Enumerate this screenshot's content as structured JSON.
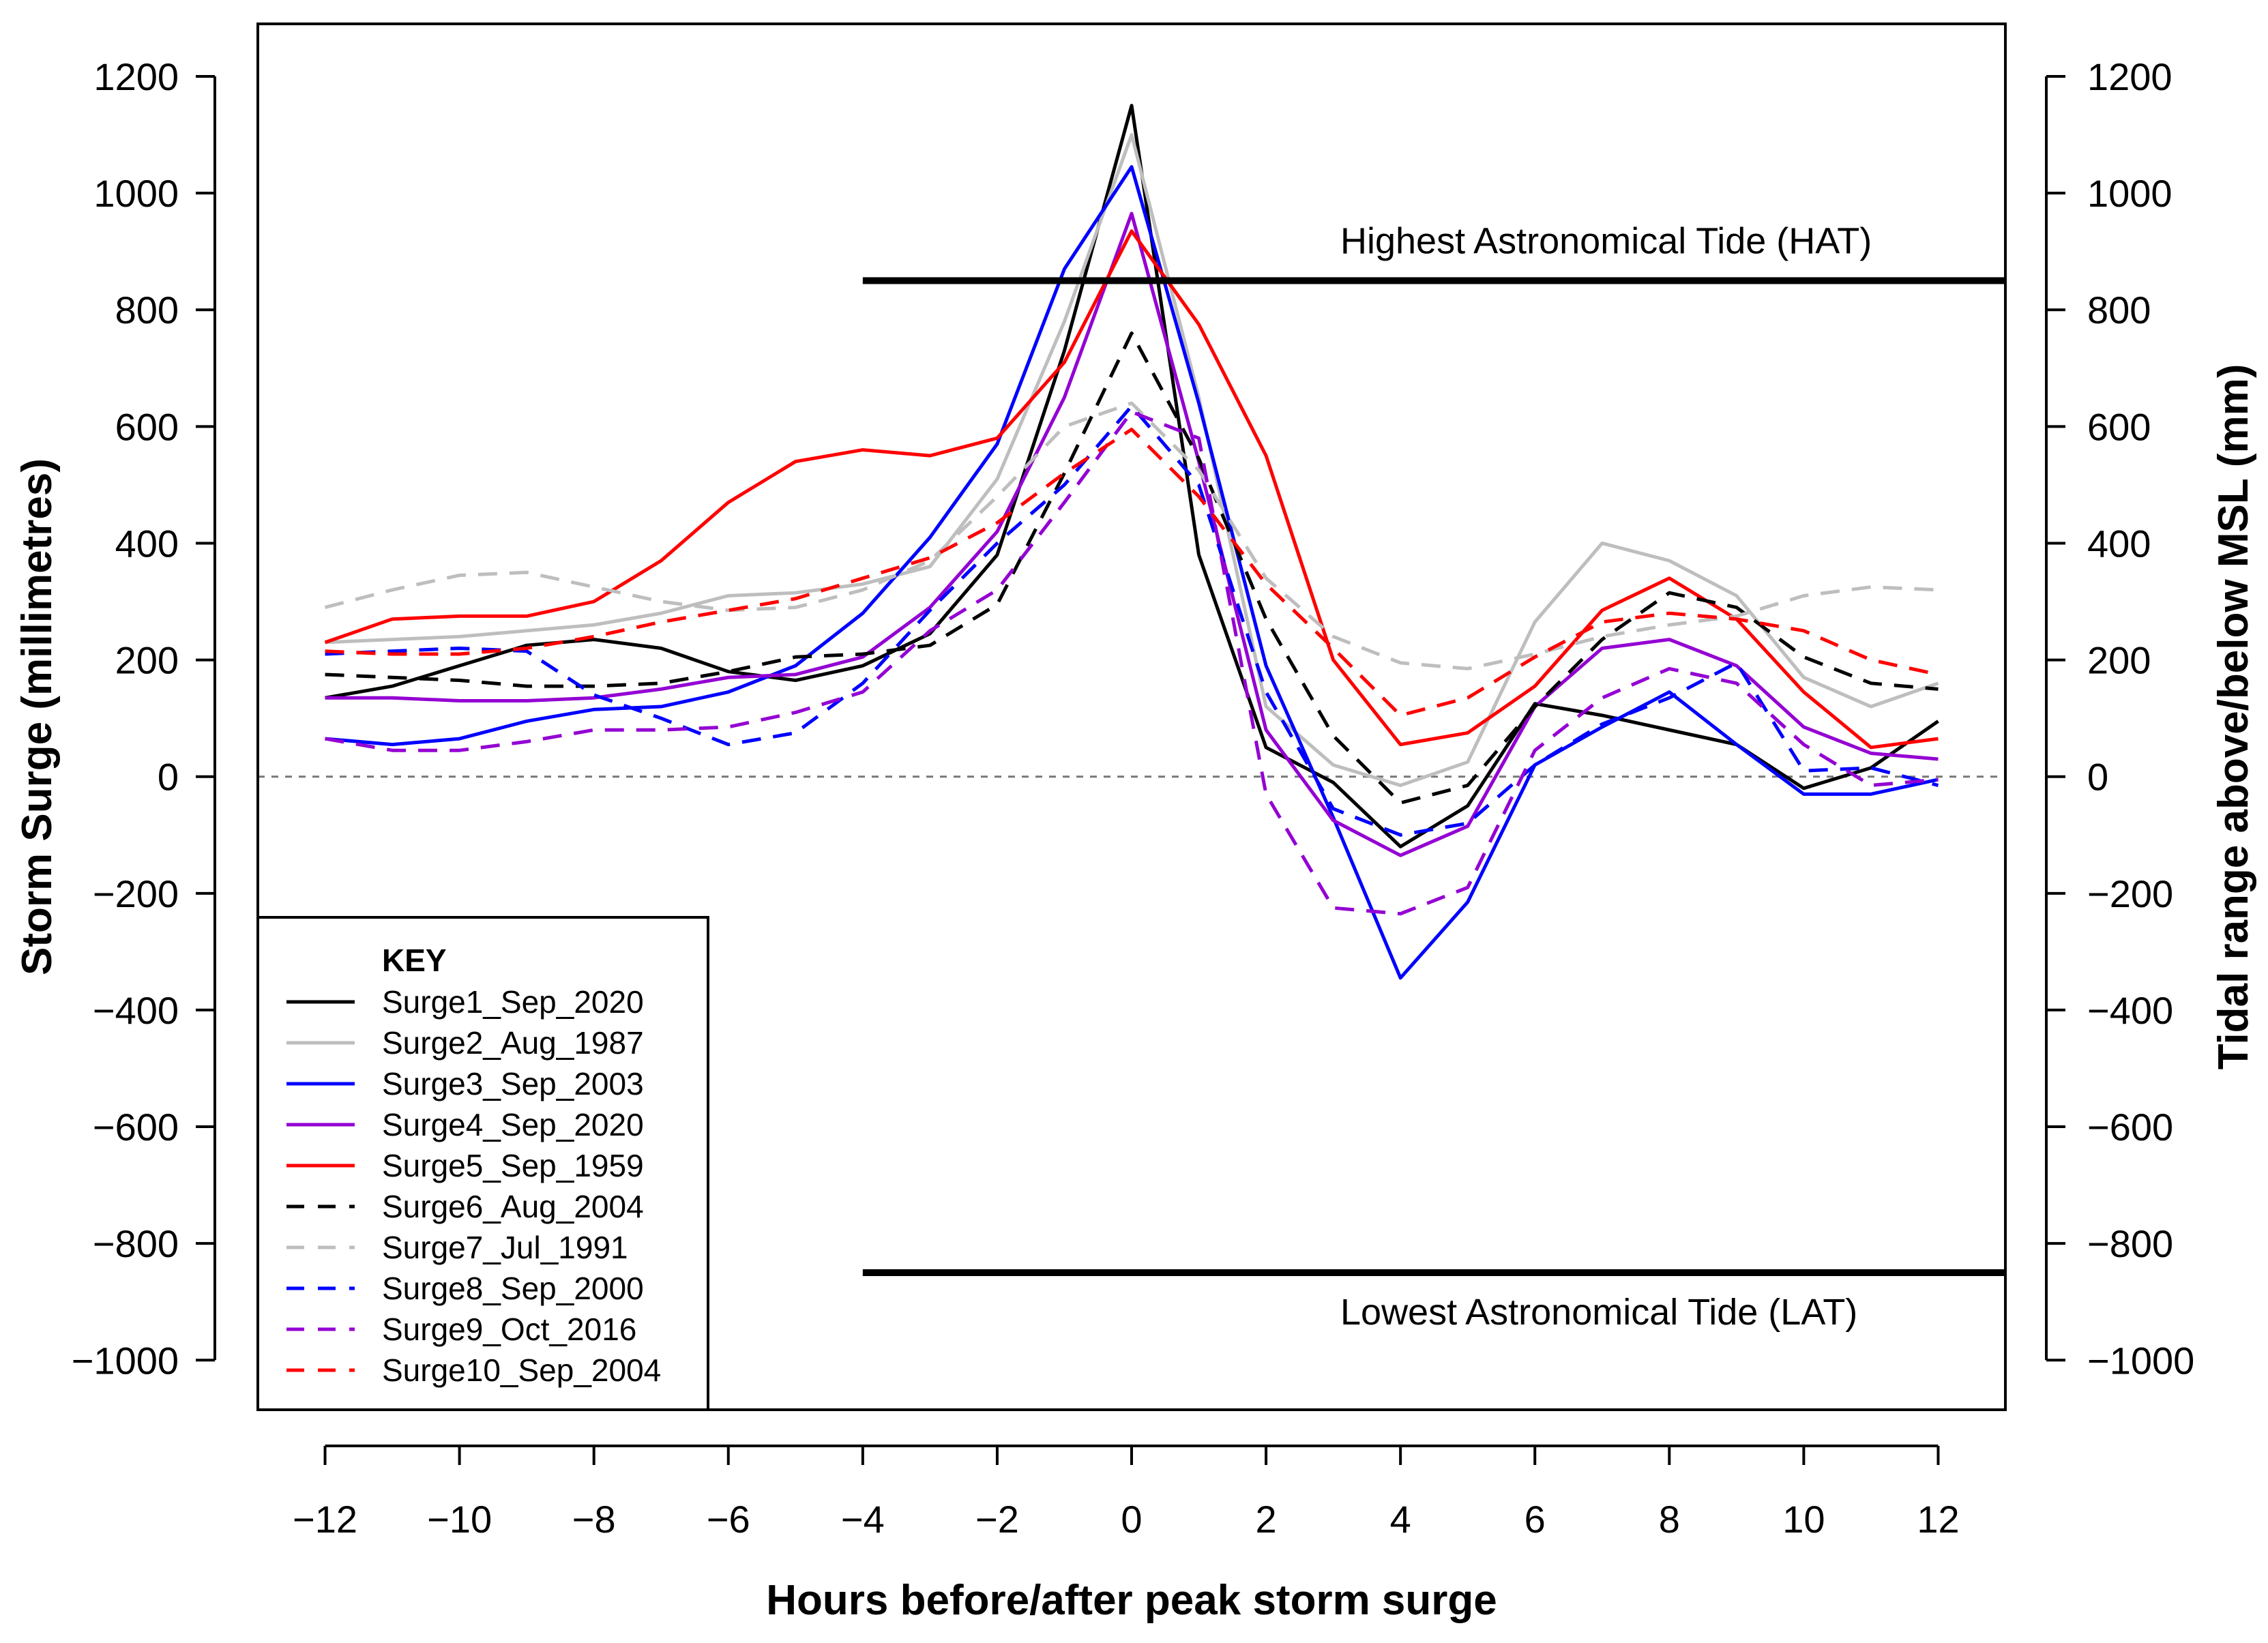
{
  "chart_data": {
    "type": "line",
    "xlabel": "Hours before/after peak storm surge",
    "ylabel": "Storm Surge (millimetres)",
    "y2label": "Tidal range above/below MSL (mm)",
    "xlim": [
      -13,
      13
    ],
    "ylim": [
      -1085,
      1290
    ],
    "x_ticks": [
      -12,
      -10,
      -8,
      -6,
      -4,
      -2,
      0,
      2,
      4,
      6,
      8,
      10,
      12
    ],
    "x_tick_labels": [
      "−12",
      "−10",
      "−8",
      "−6",
      "−4",
      "−2",
      "0",
      "2",
      "4",
      "6",
      "8",
      "10",
      "12"
    ],
    "y_ticks": [
      1200,
      1000,
      800,
      600,
      400,
      200,
      0,
      -200,
      -400,
      -600,
      -800,
      -1000
    ],
    "y_tick_labels": [
      "1200",
      "1000",
      "800",
      "600",
      "400",
      "200",
      "0",
      "−200",
      "−400",
      "−600",
      "−800",
      "−1000"
    ],
    "grid": false,
    "zero_line": true,
    "reference_lines": [
      {
        "label": "Highest Astronomical Tide (HAT)",
        "y": 850,
        "x_start": -4
      },
      {
        "label": "Lowest Astronomical Tide (LAT)",
        "y": -850,
        "x_start": -4
      }
    ],
    "legend": {
      "title": "KEY",
      "position": "bottom-left"
    },
    "x": [
      -12,
      -11,
      -10,
      -9,
      -8,
      -7,
      -6,
      -5,
      -4,
      -3,
      -2,
      -1,
      0,
      1,
      2,
      3,
      4,
      5,
      6,
      7,
      8,
      9,
      10,
      11,
      12
    ],
    "series": [
      {
        "name": "Surge1_Sep_2020",
        "color": "#000000",
        "dash": "solid",
        "values": [
          135,
          155,
          190,
          225,
          235,
          220,
          180,
          165,
          190,
          245,
          380,
          730,
          1150,
          380,
          50,
          -10,
          -120,
          -50,
          125,
          105,
          80,
          55,
          -20,
          15,
          95
        ]
      },
      {
        "name": "Surge2_Aug_1987",
        "color": "#bebebe",
        "dash": "solid",
        "values": [
          230,
          235,
          240,
          250,
          260,
          280,
          310,
          315,
          330,
          360,
          510,
          780,
          1100,
          650,
          120,
          20,
          -15,
          25,
          265,
          400,
          370,
          310,
          170,
          120,
          160
        ]
      },
      {
        "name": "Surge3_Sep_2003",
        "color": "#0000ff",
        "dash": "solid",
        "values": [
          65,
          55,
          65,
          95,
          115,
          120,
          145,
          190,
          280,
          410,
          570,
          870,
          1045,
          640,
          190,
          -70,
          -345,
          -215,
          20,
          85,
          145,
          55,
          -30,
          -30,
          -5
        ]
      },
      {
        "name": "Surge4_Sep_2020",
        "color": "#9400d3",
        "dash": "solid",
        "values": [
          135,
          135,
          130,
          130,
          135,
          150,
          170,
          175,
          205,
          290,
          420,
          650,
          965,
          540,
          80,
          -75,
          -135,
          -85,
          120,
          220,
          235,
          190,
          85,
          40,
          30
        ]
      },
      {
        "name": "Surge5_Sep_1959",
        "color": "#ff0000",
        "dash": "solid",
        "values": [
          230,
          270,
          275,
          275,
          300,
          370,
          470,
          540,
          560,
          550,
          580,
          710,
          935,
          775,
          550,
          200,
          55,
          75,
          155,
          285,
          340,
          270,
          145,
          50,
          65
        ]
      },
      {
        "name": "Surge6_Aug_2004",
        "color": "#000000",
        "dash": "dashed",
        "values": [
          175,
          170,
          165,
          155,
          155,
          160,
          180,
          205,
          210,
          225,
          295,
          520,
          760,
          545,
          270,
          70,
          -45,
          -15,
          120,
          235,
          315,
          290,
          205,
          160,
          150
        ]
      },
      {
        "name": "Surge7_Jul_1991",
        "color": "#bebebe",
        "dash": "dashed",
        "values": [
          290,
          320,
          345,
          350,
          325,
          300,
          285,
          290,
          320,
          370,
          480,
          600,
          640,
          525,
          340,
          240,
          195,
          185,
          210,
          240,
          260,
          275,
          310,
          325,
          320
        ]
      },
      {
        "name": "Surge8_Sep_2000",
        "color": "#0000ff",
        "dash": "dashed",
        "values": [
          210,
          215,
          220,
          215,
          140,
          100,
          55,
          75,
          160,
          285,
          400,
          500,
          635,
          500,
          145,
          -55,
          -100,
          -80,
          20,
          90,
          135,
          195,
          10,
          15,
          -15
        ]
      },
      {
        "name": "Surge9_Oct_2016",
        "color": "#9400d3",
        "dash": "dashed",
        "values": [
          65,
          45,
          45,
          60,
          80,
          80,
          85,
          110,
          145,
          250,
          320,
          470,
          625,
          580,
          -30,
          -225,
          -235,
          -190,
          45,
          135,
          185,
          160,
          55,
          -15,
          -5
        ]
      },
      {
        "name": "Surge10_Sep_2004",
        "color": "#ff0000",
        "dash": "dashed",
        "values": [
          215,
          210,
          210,
          220,
          240,
          265,
          285,
          305,
          340,
          375,
          435,
          520,
          595,
          480,
          330,
          220,
          105,
          135,
          205,
          265,
          280,
          270,
          250,
          200,
          175
        ]
      }
    ]
  }
}
